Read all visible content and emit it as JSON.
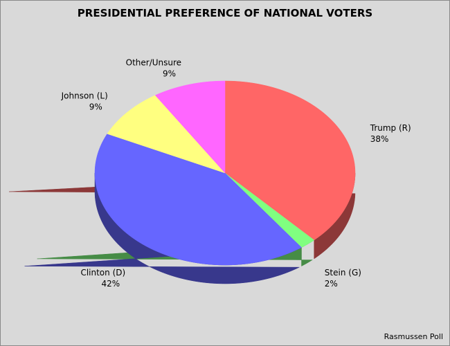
{
  "chart_data": {
    "type": "pie",
    "title": "PRESIDENTIAL PREFERENCE OF NATIONAL VOTERS",
    "categories": [
      "Trump (R)",
      "Stein (G)",
      "Clinton (D)",
      "Johnson (L)",
      "Other/Unsure"
    ],
    "values": [
      38,
      2,
      42,
      9,
      9
    ],
    "value_labels": [
      "38%",
      "2%",
      "42%",
      "9%",
      "9%"
    ],
    "colors": [
      "#ff6666",
      "#80ff80",
      "#6666ff",
      "#ffff80",
      "#ff66ff"
    ],
    "source": "Rasmussen Poll"
  }
}
